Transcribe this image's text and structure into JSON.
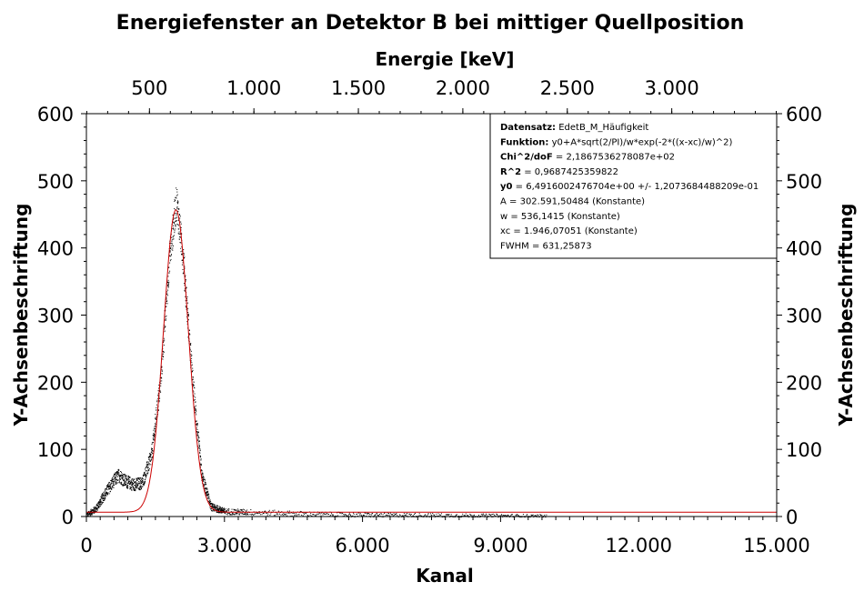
{
  "chart_data": {
    "type": "scatter",
    "title": "Energiefenster an Detektor B bei mittiger Quellposition",
    "xlabel": "Kanal",
    "ylabel": "Y-Achsenbeschriftung",
    "ylabel_right": "Y-Achsenbeschriftung",
    "top_xlabel": "Energie [keV]",
    "xlim": [
      0,
      15000
    ],
    "ylim": [
      0,
      600
    ],
    "x_ticks": [
      0,
      3000,
      6000,
      9000,
      12000,
      15000
    ],
    "x_tick_labels": [
      "0",
      "3.000",
      "6.000",
      "9.000",
      "12.000",
      "15.000"
    ],
    "y_ticks": [
      0,
      100,
      200,
      300,
      400,
      500,
      600
    ],
    "y_tick_labels": [
      "0",
      "100",
      "200",
      "300",
      "400",
      "500",
      "600"
    ],
    "top_ticks_channel": [
      1370,
      3640,
      5910,
      8180,
      10450,
      12720
    ],
    "top_tick_labels": [
      "500",
      "1.000",
      "1.500",
      "2.000",
      "2.500",
      "3.000"
    ],
    "grid": false,
    "series": [
      {
        "kind": "scatter",
        "color": "#000000",
        "points_sampled": [
          [
            0,
            3
          ],
          [
            200,
            12
          ],
          [
            400,
            35
          ],
          [
            600,
            55
          ],
          [
            700,
            62
          ],
          [
            800,
            55
          ],
          [
            1000,
            48
          ],
          [
            1200,
            50
          ],
          [
            1400,
            90
          ],
          [
            1600,
            200
          ],
          [
            1800,
            390
          ],
          [
            1950,
            470
          ],
          [
            2100,
            380
          ],
          [
            2300,
            200
          ],
          [
            2500,
            60
          ],
          [
            2700,
            15
          ],
          [
            3000,
            8
          ],
          [
            4000,
            6
          ],
          [
            5000,
            4
          ],
          [
            6000,
            3
          ],
          [
            8000,
            2
          ],
          [
            10000,
            1
          ],
          [
            12000,
            1
          ],
          [
            15000,
            0
          ]
        ]
      },
      {
        "kind": "fit-line",
        "color": "#cc0000",
        "function": "y0+A*sqrt(2/PI)/w*exp(-2*((x-xc)/w)^2)",
        "params": {
          "y0": 6.4916,
          "A": 302591.50484,
          "w": 536.1415,
          "xc": 1946.07051
        }
      }
    ],
    "legend": {
      "placement": "top-right",
      "entries": [
        {
          "key": "Datensatz:",
          "value": " EdetB_M_Häufigkeit"
        },
        {
          "key": "Funktion:",
          "value": " y0+A*sqrt(2/PI)/w*exp(-2*((x-xc)/w)^2)"
        },
        {
          "key": "Chi^2/doF",
          "value": " = 2,1867536278087e+02"
        },
        {
          "key": "R^2",
          "value": " = 0,9687425359822"
        },
        {
          "key": "y0",
          "value": " = 6,4916002476704e+00 +/- 1,2073684488209e-01"
        },
        {
          "key": "",
          "value": "A = 302.591,50484 (Konstante)"
        },
        {
          "key": "",
          "value": "w = 536,1415 (Konstante)"
        },
        {
          "key": "",
          "value": "xc = 1.946,07051 (Konstante)"
        },
        {
          "key": "",
          "value": "FWHM = 631,25873"
        }
      ]
    }
  }
}
